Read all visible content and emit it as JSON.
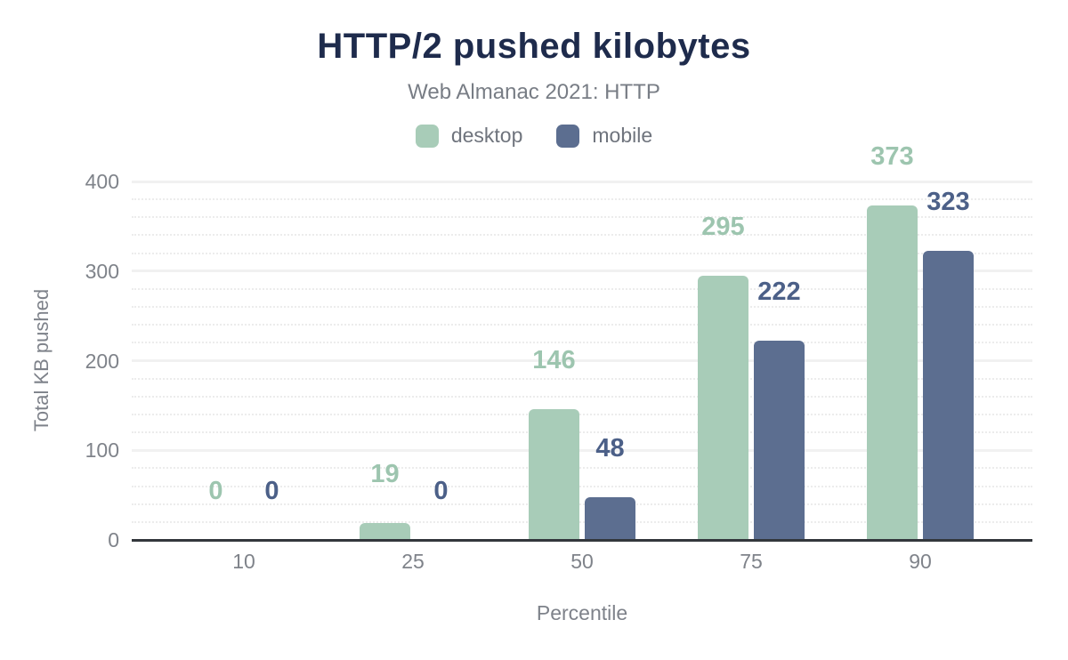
{
  "header": {
    "title": "HTTP/2 pushed kilobytes",
    "subtitle": "Web Almanac 2021: HTTP"
  },
  "chart_data": {
    "type": "bar",
    "title": "HTTP/2 pushed kilobytes",
    "subtitle": "Web Almanac 2021: HTTP",
    "categories": [
      "10",
      "25",
      "50",
      "75",
      "90"
    ],
    "series": [
      {
        "name": "desktop",
        "values": [
          0,
          19,
          146,
          295,
          373
        ],
        "bar_color": "#a8ccb8",
        "label_color": "#9dc5af"
      },
      {
        "name": "mobile",
        "values": [
          0,
          0,
          48,
          222,
          323
        ],
        "bar_color": "#5c6e90",
        "label_color": "#4c6088"
      }
    ],
    "xlabel": "Percentile",
    "ylabel": "Total KB pushed",
    "ylim": [
      0,
      400
    ],
    "yticks": [
      0,
      100,
      200,
      300,
      400
    ],
    "minor_grid_step": 20,
    "grid": true,
    "legend_position": "top",
    "data_labels": true
  },
  "colors": {
    "title_text": "#1e2b4c",
    "subtitle_text": "#787d85",
    "axis_text": "#7f838a",
    "axis_line": "#33373c",
    "grid_major": "#f1f1f1",
    "grid_minor": "#ececec"
  }
}
